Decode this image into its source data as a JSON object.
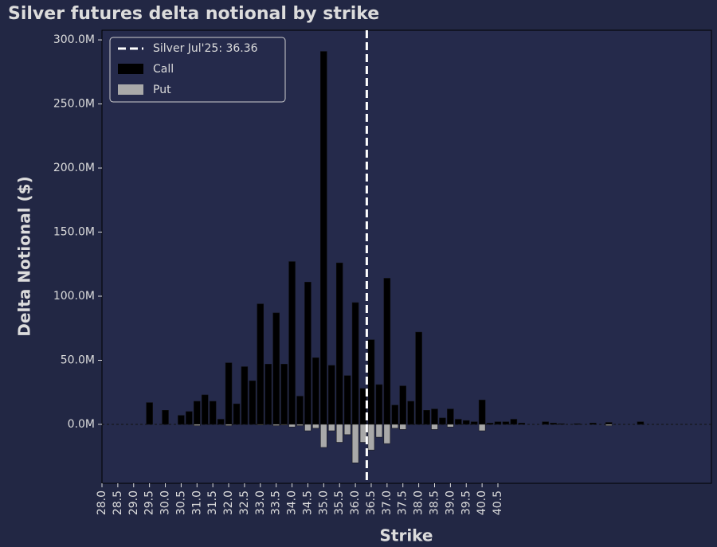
{
  "chart_data": {
    "type": "bar",
    "title": "Silver futures delta notional by strike",
    "x_label": "Strike",
    "y_label": "Delta Notional ($)",
    "x": [
      29.5,
      30,
      30.5,
      30.75,
      31,
      31.25,
      31.5,
      31.75,
      32,
      32.25,
      32.5,
      32.75,
      33,
      33.25,
      33.5,
      33.75,
      34,
      34.25,
      34.5,
      34.75,
      35,
      35.25,
      35.5,
      35.75,
      36,
      36.25,
      36.5,
      36.75,
      37,
      37.25,
      37.5,
      37.75,
      38,
      38.25,
      38.5,
      38.75,
      39,
      39.25,
      39.5,
      39.75,
      40,
      40.25,
      40.5,
      40.75,
      41,
      41.25,
      42,
      42.25,
      42.5,
      43,
      43.5,
      44,
      45
    ],
    "series": [
      {
        "name": "Call",
        "color": "#000000",
        "values": [
          17000000,
          11000000,
          7000000,
          10000000,
          18000000,
          23000000,
          18000000,
          4000000,
          48000000,
          16000000,
          45000000,
          34000000,
          94000000,
          47000000,
          87000000,
          47000000,
          127000000,
          22000000,
          111000000,
          52000000,
          291000000,
          46000000,
          126000000,
          38000000,
          95000000,
          28000000,
          66000000,
          31000000,
          114000000,
          15000000,
          30000000,
          18000000,
          72000000,
          11000000,
          12000000,
          5000000,
          12000000,
          4000000,
          3000000,
          2000000,
          19000000,
          1000000,
          2000000,
          2000000,
          4000000,
          1000000,
          2000000,
          1000000,
          500000,
          500000,
          1000000,
          1500000,
          2000000
        ]
      },
      {
        "name": "Put",
        "color": "#a9a9a9",
        "values": [
          0,
          0,
          0,
          0,
          -1000000,
          0,
          0,
          0,
          -1000000,
          0,
          0,
          0,
          -500000,
          0,
          -1000000,
          -500000,
          -2000000,
          -1000000,
          -5000000,
          -3000000,
          -18000000,
          -5000000,
          -14000000,
          -8000000,
          -30000000,
          -14000000,
          -20000000,
          -10000000,
          -15000000,
          -3000000,
          -4000000,
          0,
          0,
          0,
          -4000000,
          0,
          -2000000,
          0,
          0,
          0,
          -5000000,
          0,
          0,
          0,
          0,
          0,
          0,
          0,
          0,
          0,
          0,
          -1000000,
          0
        ]
      }
    ],
    "vline": {
      "name": "Silver Jul'25: 36.36",
      "value": 36.36,
      "color": "#ffffff"
    },
    "xlim": [
      28,
      47.24
    ],
    "ylim": [
      -46000000,
      307500000
    ],
    "xticks": [
      {
        "value": 28,
        "label": "28.0"
      },
      {
        "value": 28.5,
        "label": "28.5"
      },
      {
        "value": 29,
        "label": "29.0"
      },
      {
        "value": 29.5,
        "label": "29.5"
      },
      {
        "value": 30,
        "label": "30.0"
      },
      {
        "value": 30.5,
        "label": "30.5"
      },
      {
        "value": 31,
        "label": "31.0"
      },
      {
        "value": 31.5,
        "label": "31.5"
      },
      {
        "value": 32,
        "label": "32.0"
      },
      {
        "value": 32.5,
        "label": "32.5"
      },
      {
        "value": 33,
        "label": "33.0"
      },
      {
        "value": 33.5,
        "label": "33.5"
      },
      {
        "value": 34,
        "label": "34.0"
      },
      {
        "value": 34.5,
        "label": "34.5"
      },
      {
        "value": 35,
        "label": "35.0"
      },
      {
        "value": 35.5,
        "label": "35.5"
      },
      {
        "value": 36,
        "label": "36.0"
      },
      {
        "value": 36.5,
        "label": "36.5"
      },
      {
        "value": 37,
        "label": "37.0"
      },
      {
        "value": 37.5,
        "label": "37.5"
      },
      {
        "value": 38,
        "label": "38.0"
      },
      {
        "value": 38.5,
        "label": "38.5"
      },
      {
        "value": 39,
        "label": "39.0"
      },
      {
        "value": 39.5,
        "label": "39.5"
      },
      {
        "value": 40,
        "label": "40.0"
      },
      {
        "value": 40.5,
        "label": "40.5"
      }
    ],
    "yticks": [
      {
        "value": 0,
        "label": "0.0M"
      },
      {
        "value": 50000000,
        "label": "50.0M"
      },
      {
        "value": 100000000,
        "label": "100.0M"
      },
      {
        "value": 150000000,
        "label": "150.0M"
      },
      {
        "value": 200000000,
        "label": "200.0M"
      },
      {
        "value": 250000000,
        "label": "250.0M"
      },
      {
        "value": 300000000,
        "label": "300.0M"
      }
    ],
    "legend": "upper left"
  }
}
